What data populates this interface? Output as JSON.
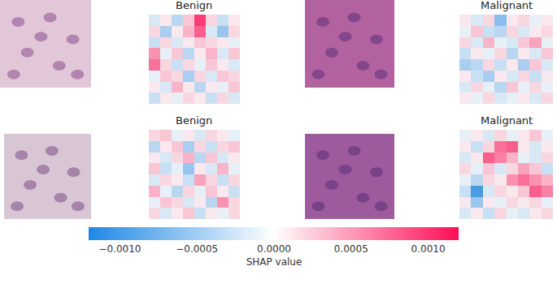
{
  "chart_data": {
    "type": "heatmap",
    "tick_labels": false,
    "panels": [
      {
        "title": "Benign",
        "cells": [
          [
            -0.0002,
            0.0001,
            -0.0004,
            0.0003,
            0.0011,
            0.0002,
            -0.0003,
            0.0001
          ],
          [
            0.0002,
            -0.0005,
            0.0001,
            0.0004,
            0.0009,
            -0.0002,
            -0.0006,
            0.0002
          ],
          [
            -0.0003,
            0.0002,
            -0.0002,
            0.0001,
            0.0003,
            0.0002,
            0.0001,
            -0.0001
          ],
          [
            0.0006,
            -0.0001,
            0.0003,
            -0.0004,
            0.0001,
            0.0004,
            -0.0002,
            0.0003
          ],
          [
            0.0008,
            0.0002,
            -0.0003,
            0.0002,
            -0.0001,
            0.0003,
            0.0001,
            -0.0002
          ],
          [
            -0.0001,
            0.0003,
            0.0002,
            -0.0005,
            0.0002,
            -0.0002,
            0.0003,
            0.0002
          ],
          [
            0.0001,
            -0.0002,
            0.0004,
            0.0001,
            -0.0004,
            0.0001,
            -0.0001,
            0.0003
          ],
          [
            -0.0003,
            0.0001,
            -0.0001,
            0.0002,
            0.0001,
            -0.0003,
            0.0002,
            -0.0002
          ]
        ]
      },
      {
        "title": "Malignant",
        "cells": [
          [
            0.0001,
            -0.0002,
            0.0002,
            -0.0007,
            0.0001,
            0.0002,
            -0.0001,
            0.0001
          ],
          [
            -0.0001,
            0.0003,
            -0.0003,
            -0.0004,
            0.0002,
            -0.0002,
            0.0001,
            0.0002
          ],
          [
            0.0002,
            -0.0002,
            0.0004,
            -0.0001,
            -0.0002,
            0.0003,
            0.0005,
            -0.0001
          ],
          [
            -0.0003,
            0.0001,
            -0.0001,
            0.0002,
            -0.0004,
            0.0001,
            -0.0002,
            0.0003
          ],
          [
            -0.0005,
            -0.0004,
            0.0002,
            -0.0003,
            0.0001,
            -0.0005,
            0.0003,
            -0.0002
          ],
          [
            0.0001,
            -0.0003,
            -0.0005,
            0.0001,
            -0.0002,
            0.0002,
            -0.0003,
            0.0001
          ],
          [
            -0.0002,
            0.0002,
            -0.0001,
            -0.0004,
            0.0003,
            -0.0001,
            0.0002,
            -0.0001
          ],
          [
            0.0001,
            -0.0001,
            0.0002,
            -0.0002,
            -0.0001,
            0.0001,
            -0.0002,
            0.0002
          ]
        ]
      },
      {
        "title": "Benign",
        "cells": [
          [
            0.0002,
            0.0003,
            -0.0001,
            0.0001,
            -0.0002,
            0.0002,
            0.0001,
            -0.0001
          ],
          [
            -0.0004,
            0.0001,
            0.0003,
            -0.0005,
            0.0002,
            -0.0003,
            0.0002,
            0.0003
          ],
          [
            0.0001,
            -0.0002,
            0.0002,
            0.0004,
            -0.0004,
            0.0003,
            -0.0002,
            0.0001
          ],
          [
            0.0003,
            -0.0003,
            -0.0001,
            -0.0006,
            0.0001,
            -0.0002,
            0.0004,
            -0.0001
          ],
          [
            -0.0002,
            0.0002,
            0.0001,
            -0.0003,
            0.0005,
            0.0002,
            -0.0003,
            0.0002
          ],
          [
            0.0004,
            -0.0001,
            -0.0004,
            0.0002,
            -0.0001,
            0.0003,
            0.0001,
            -0.0003
          ],
          [
            -0.0001,
            0.0003,
            0.0002,
            -0.0002,
            0.0001,
            -0.0004,
            0.0006,
            0.0002
          ],
          [
            0.0002,
            -0.0002,
            0.0001,
            0.0003,
            -0.0003,
            0.0001,
            -0.0001,
            0.0002
          ]
        ]
      },
      {
        "title": "Malignant",
        "cells": [
          [
            -0.0001,
            0.0001,
            -0.0002,
            0.0002,
            -0.0001,
            0.0001,
            0.0003,
            -0.0001
          ],
          [
            0.0001,
            -0.0003,
            0.0002,
            0.0008,
            0.0009,
            0.0001,
            -0.0002,
            0.0001
          ],
          [
            -0.0002,
            0.0001,
            0.0009,
            0.0007,
            0.0004,
            -0.0001,
            -0.0002,
            0.0002
          ],
          [
            0.0002,
            -0.0001,
            0.0003,
            -0.0002,
            0.0002,
            0.0005,
            0.0003,
            -0.0003
          ],
          [
            -0.0001,
            -0.0004,
            0.0002,
            0.0001,
            0.0006,
            0.0008,
            0.0006,
            0.0004
          ],
          [
            -0.0003,
            -0.0011,
            -0.0002,
            0.0002,
            0.0001,
            0.0003,
            0.0009,
            0.0007
          ],
          [
            0.0001,
            -0.0006,
            0.0001,
            -0.0001,
            0.0002,
            0.0001,
            0.0002,
            -0.0001
          ],
          [
            -0.0002,
            0.0001,
            -0.0003,
            0.0002,
            -0.0001,
            -0.0002,
            0.0001,
            0.0002
          ]
        ]
      }
    ],
    "colorbar": {
      "title": "SHAP value",
      "zlim": [
        -0.0012,
        0.0012
      ],
      "zticks": [
        {
          "value": -0.001,
          "label": "−0.0010"
        },
        {
          "value": -0.0005,
          "label": "−0.0005"
        },
        {
          "value": 0,
          "label": "0.0000"
        },
        {
          "value": 0.0005,
          "label": "0.0005"
        },
        {
          "value": 0.001,
          "label": "0.0010"
        }
      ]
    }
  }
}
